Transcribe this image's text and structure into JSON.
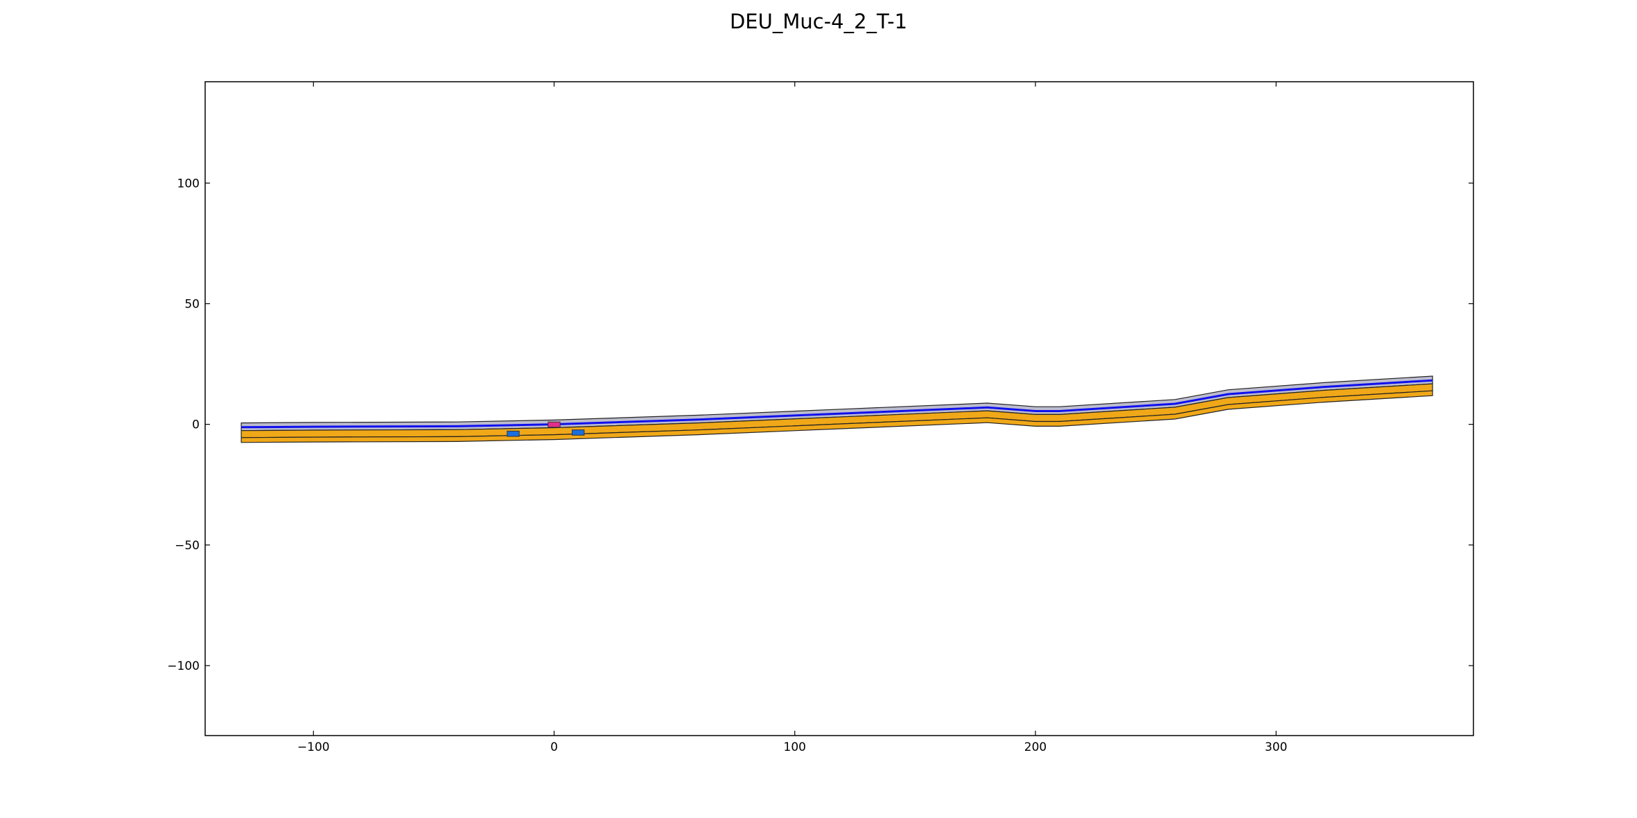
{
  "chart_data": {
    "type": "line",
    "title": "DEU_Muc-4_2_T-1",
    "xlabel": "",
    "ylabel": "",
    "xlim": [
      -145,
      382
    ],
    "ylim": [
      -129,
      142
    ],
    "xticks": [
      -100,
      0,
      100,
      200,
      300
    ],
    "yticks": [
      -100,
      -50,
      0,
      50,
      100
    ],
    "xtick_labels": [
      "−100",
      "0",
      "100",
      "200",
      "300"
    ],
    "ytick_labels": [
      "−100",
      "−50",
      "0",
      "50",
      "100"
    ],
    "grid": false,
    "legend": "none",
    "road_centerline_x": [
      -130,
      -100,
      -40,
      0,
      60,
      120,
      180,
      200,
      210,
      258,
      280,
      320,
      365
    ],
    "road_centerline_y": [
      -1.2,
      -1.0,
      -0.8,
      0.0,
      2.0,
      4.5,
      7.0,
      5.5,
      5.5,
      8.5,
      12.5,
      15.5,
      18.2
    ],
    "lanes": [
      {
        "name": "upper lane",
        "top_offset": 1.8,
        "bottom_offset": -1.4,
        "fill": "#b0b0c8",
        "role": "upper"
      },
      {
        "name": "lower lane 1",
        "top_offset": -1.4,
        "bottom_offset": -4.3,
        "fill": "#f0a818",
        "role": "lower"
      },
      {
        "name": "lower lane 2",
        "top_offset": -4.3,
        "bottom_offset": -6.3,
        "fill": "#f0a818",
        "role": "lower"
      }
    ],
    "objects": [
      {
        "name": "ego vehicle",
        "x": 0,
        "y": -0.1,
        "width": 5,
        "height": 2.2,
        "color": "#e0308a"
      },
      {
        "name": "obstacle 1",
        "x": -17,
        "y": -3.9,
        "width": 5,
        "height": 2.2,
        "color": "#1a6fe0"
      },
      {
        "name": "obstacle 2",
        "x": 10,
        "y": -3.4,
        "width": 5,
        "height": 2.2,
        "color": "#1a6fe0"
      }
    ],
    "colors": {
      "centerline": "#1010ee",
      "lane_edge": "#222222",
      "upper_lane": "#b0b0c8",
      "lower_lane": "#f0a818",
      "ego": "#e0308a",
      "obstacle": "#1a6fe0"
    }
  }
}
